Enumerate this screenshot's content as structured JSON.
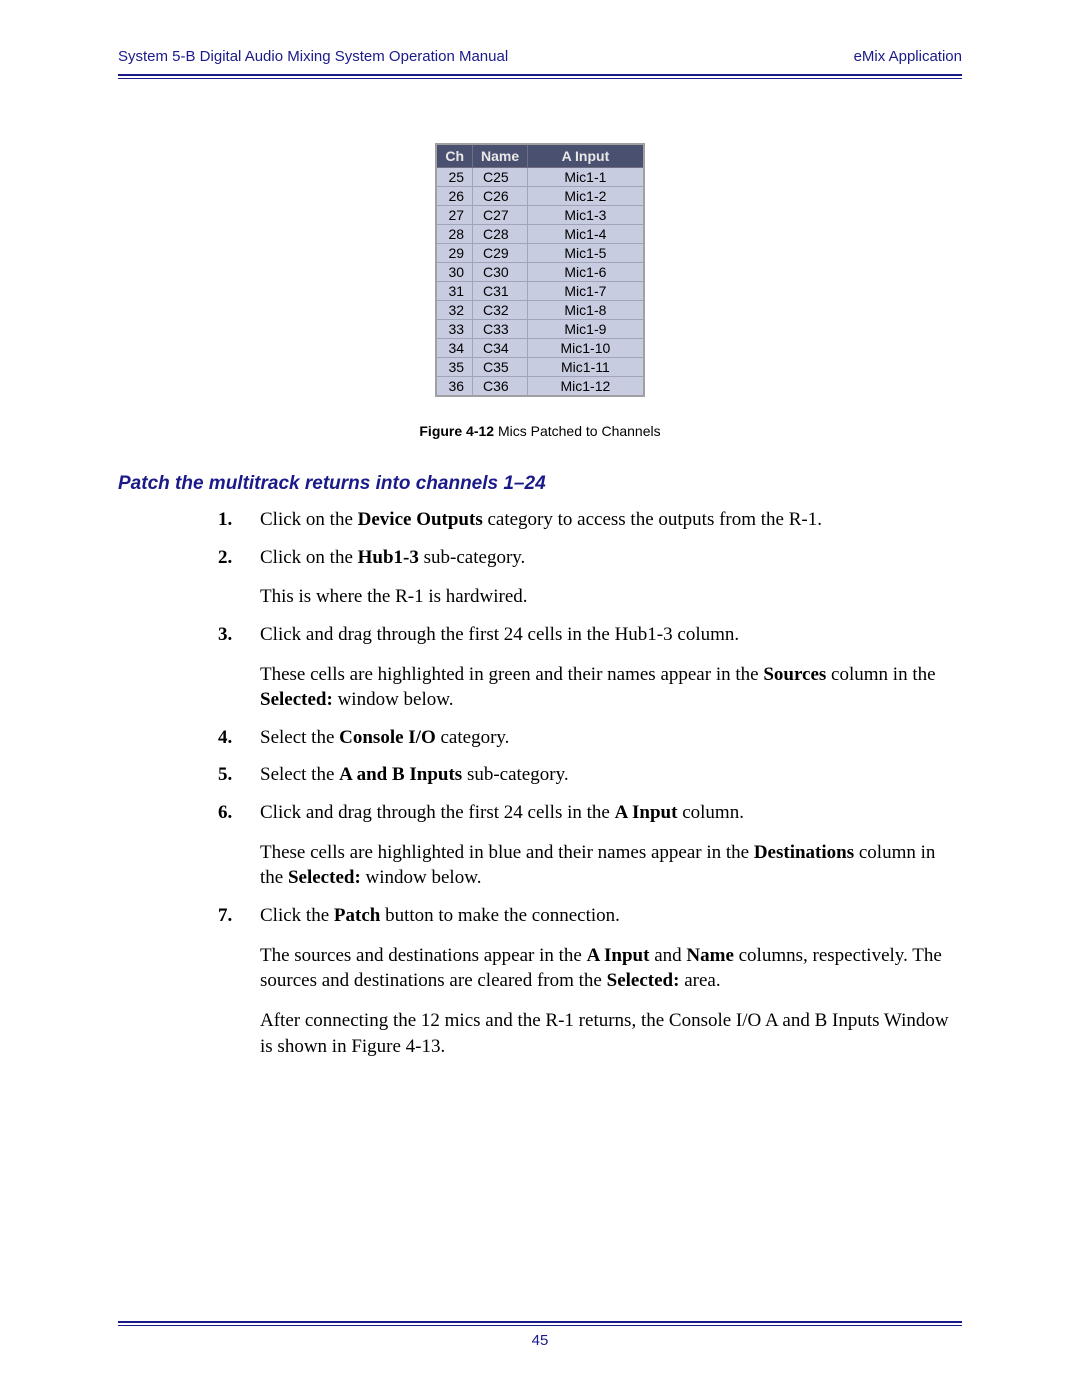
{
  "header": {
    "left": "System 5-B Digital Audio Mixing System Operation Manual",
    "right": "eMix Application"
  },
  "table": {
    "headers": {
      "ch": "Ch",
      "name": "Name",
      "ainput": "A Input"
    },
    "header_bg": "#4a5170",
    "header_fg": "#e8e8e8",
    "cell_bg": "#c8cce0",
    "border_color": "#a0a4b8",
    "font_family": "Arial",
    "font_size": 14,
    "rows": [
      {
        "ch": "25",
        "name": "C25",
        "ainput": "Mic1-1"
      },
      {
        "ch": "26",
        "name": "C26",
        "ainput": "Mic1-2"
      },
      {
        "ch": "27",
        "name": "C27",
        "ainput": "Mic1-3"
      },
      {
        "ch": "28",
        "name": "C28",
        "ainput": "Mic1-4"
      },
      {
        "ch": "29",
        "name": "C29",
        "ainput": "Mic1-5"
      },
      {
        "ch": "30",
        "name": "C30",
        "ainput": "Mic1-6"
      },
      {
        "ch": "31",
        "name": "C31",
        "ainput": "Mic1-7"
      },
      {
        "ch": "32",
        "name": "C32",
        "ainput": "Mic1-8"
      },
      {
        "ch": "33",
        "name": "C33",
        "ainput": "Mic1-9"
      },
      {
        "ch": "34",
        "name": "C34",
        "ainput": "Mic1-10"
      },
      {
        "ch": "35",
        "name": "C35",
        "ainput": "Mic1-11"
      },
      {
        "ch": "36",
        "name": "C36",
        "ainput": "Mic1-12"
      }
    ]
  },
  "caption": {
    "label": "Figure 4-12",
    "text": " Mics Patched to Channels"
  },
  "section_heading": "Patch the multitrack returns into channels 1–24",
  "steps": [
    {
      "num": "1.",
      "paras": [
        "Click on the <b>Device Outputs</b> category to access the outputs from the R-1."
      ]
    },
    {
      "num": "2.",
      "paras": [
        "Click on the <b>Hub1-3</b> sub-category.",
        "This is where the R-1 is hardwired."
      ]
    },
    {
      "num": "3.",
      "paras": [
        "Click and drag through the first 24 cells in the Hub1-3 column.",
        "These cells are highlighted in green and their names appear in the <b>Sources</b> column in the <b>Selected:</b> window below."
      ]
    },
    {
      "num": "4.",
      "paras": [
        "Select the <b>Console I/O</b> category."
      ]
    },
    {
      "num": "5.",
      "paras": [
        "Select the <b>A and B Inputs</b> sub-category."
      ]
    },
    {
      "num": "6.",
      "paras": [
        "Click and drag through the first 24 cells in the <b>A Input</b> column.",
        "These cells are highlighted in blue and their names appear in the <b>Destinations</b> column in the <b>Selected:</b> window below."
      ]
    },
    {
      "num": "7.",
      "paras": [
        "Click the <b>Patch</b> button to make the connection.",
        "The sources and destinations appear in the <b>A Input</b> and <b>Name</b> columns, respectively. The sources and destinations are cleared from the <b>Selected:</b> area.",
        "After connecting the 12 mics and the R-1 returns, the Console I/O A and B Inputs Window is shown in Figure 4-13."
      ]
    }
  ],
  "page_number": "45",
  "colors": {
    "heading": "#1a1a8a",
    "rule": "#1a1a8a",
    "body_text": "#000000",
    "background": "#ffffff"
  },
  "typography": {
    "body_font": "Times New Roman",
    "body_size": 19,
    "ui_font": "Arial",
    "heading_size": 19,
    "caption_size": 14
  }
}
